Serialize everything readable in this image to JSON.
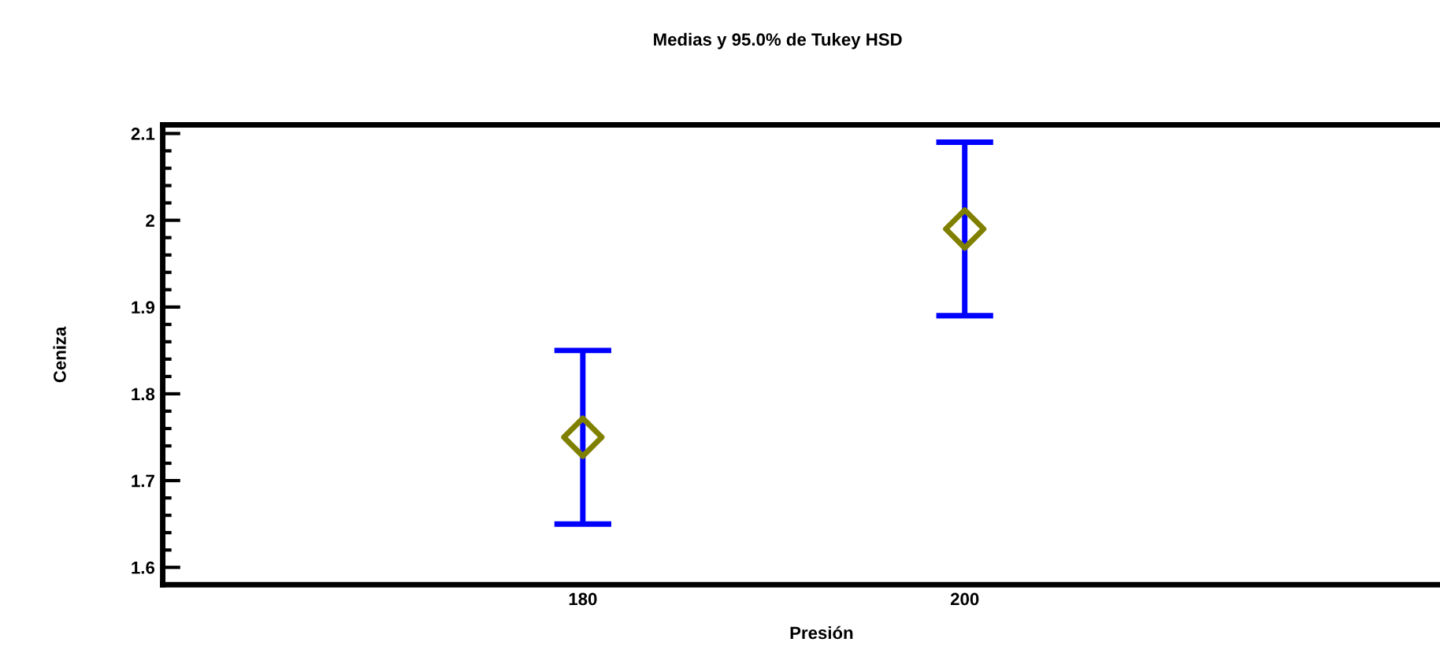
{
  "chart_data": {
    "type": "scatter",
    "title": "Medias y 95.0% de Tukey HSD",
    "xlabel": "Presión",
    "ylabel": "Ceniza",
    "categories": [
      "180",
      "200"
    ],
    "series": [
      {
        "color": "#808000",
        "values": [
          1.75,
          1.99
        ],
        "errors": [
          [
            1.65,
            1.85
          ],
          [
            1.89,
            2.09
          ]
        ]
      }
    ],
    "ylim": [
      1.58,
      2.11
    ],
    "yticks": [
      1.6,
      1.7,
      1.8,
      1.9,
      2,
      2.1
    ],
    "marker": "diamond",
    "grid": false
  }
}
